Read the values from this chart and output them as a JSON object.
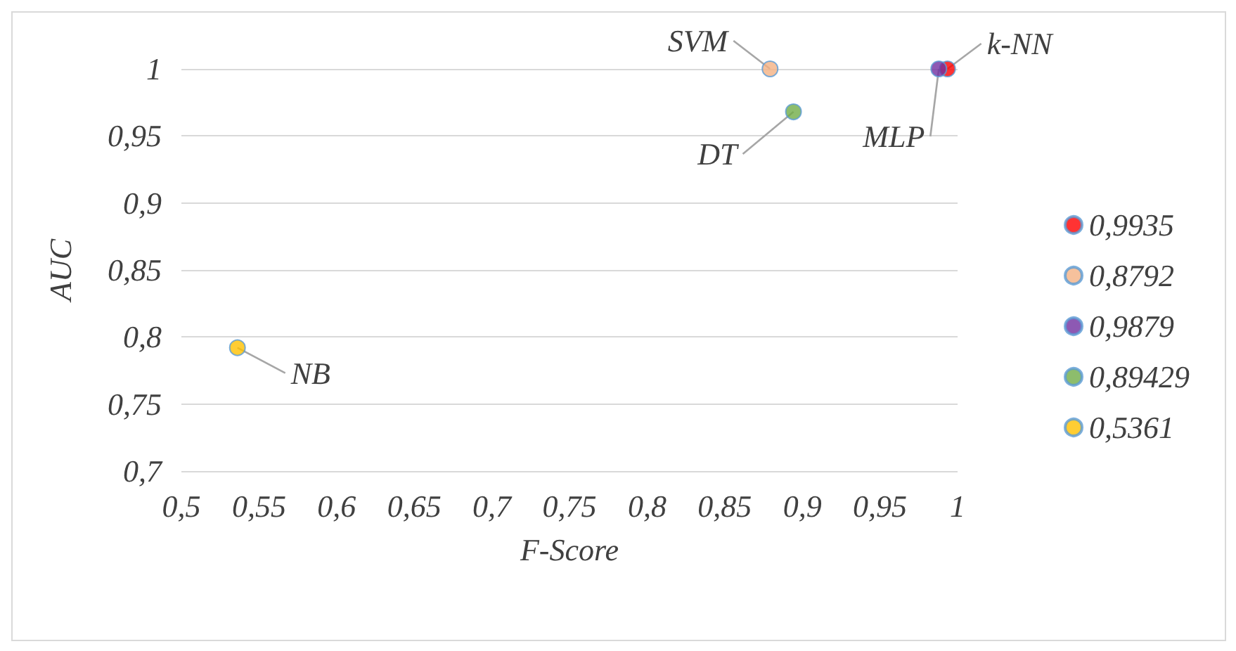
{
  "chart_data": {
    "type": "scatter",
    "xlabel": "F-Score",
    "ylabel": "AUC",
    "xlim": [
      0.5,
      1
    ],
    "xticks": [
      {
        "value": 0.5,
        "label": "0,5"
      },
      {
        "value": 0.55,
        "label": "0,55"
      },
      {
        "value": 0.6,
        "label": "0,6"
      },
      {
        "value": 0.65,
        "label": "0,65"
      },
      {
        "value": 0.7,
        "label": "0,7"
      },
      {
        "value": 0.75,
        "label": "0,75"
      },
      {
        "value": 0.8,
        "label": "0,8"
      },
      {
        "value": 0.85,
        "label": "0,85"
      },
      {
        "value": 0.9,
        "label": "0,9"
      },
      {
        "value": 0.95,
        "label": "0,95"
      },
      {
        "value": 1,
        "label": "1"
      }
    ],
    "ylim": [
      0.7,
      1
    ],
    "yticks": [
      {
        "value": 0.7,
        "label": "0,7"
      },
      {
        "value": 0.75,
        "label": "0,75"
      },
      {
        "value": 0.8,
        "label": "0,8"
      },
      {
        "value": 0.85,
        "label": "0,85"
      },
      {
        "value": 0.9,
        "label": "0,9"
      },
      {
        "value": 0.95,
        "label": "0,95"
      },
      {
        "value": 1,
        "label": "1"
      }
    ],
    "grid": "y",
    "legend": "right",
    "marker": "circle",
    "series": [
      {
        "name": "0,9935",
        "color": "#ff0000",
        "x": [
          0.9935
        ],
        "values": [
          1.0
        ]
      },
      {
        "name": "0,8792",
        "color": "#f4b183",
        "x": [
          0.8792
        ],
        "values": [
          1.0
        ]
      },
      {
        "name": "0,9879",
        "color": "#7030a0",
        "x": [
          0.9879
        ],
        "values": [
          1.0
        ]
      },
      {
        "name": "0,89429",
        "color": "#70ad47",
        "x": [
          0.89429
        ],
        "values": [
          0.968
        ]
      },
      {
        "name": "0,5361",
        "color": "#ffc000",
        "x": [
          0.5361
        ],
        "values": [
          0.792
        ]
      }
    ],
    "annotations": [
      {
        "text": "k-NN",
        "x": 0.9935,
        "y": 1.0
      },
      {
        "text": "SVM",
        "x": 0.8792,
        "y": 1.0
      },
      {
        "text": "MLP",
        "x": 0.9879,
        "y": 1.0
      },
      {
        "text": "DT",
        "x": 0.89429,
        "y": 0.968
      },
      {
        "text": "NB",
        "x": 0.5361,
        "y": 0.792
      }
    ]
  }
}
